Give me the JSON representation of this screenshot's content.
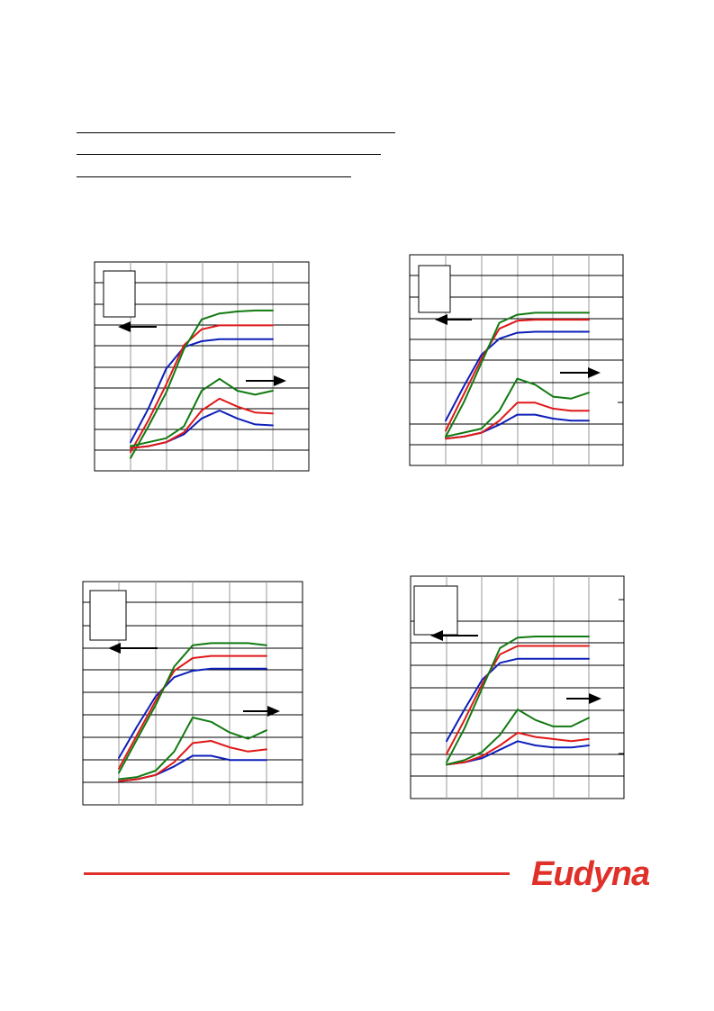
{
  "brand": {
    "logo_text": "Eudyna",
    "color": "#e0302a"
  },
  "colors": {
    "blue": "#0d1fb8",
    "red": "#e01818",
    "green": "#127a12",
    "grid": "#000000"
  },
  "chart_data": [
    {
      "type": "line",
      "xlim": [
        -2,
        4
      ],
      "ylim": [
        0,
        100
      ],
      "grid": true,
      "arrows": [
        {
          "direction": "left"
        },
        {
          "direction": "right"
        }
      ],
      "series": [
        {
          "color": "#0d1fb8",
          "values": [
            [
              -1,
              9
            ],
            [
              -0.5,
              26
            ],
            [
              0,
              46
            ],
            [
              0.5,
              57
            ],
            [
              1,
              60
            ],
            [
              1.5,
              61
            ],
            [
              2,
              61
            ],
            [
              2.5,
              61
            ],
            [
              3,
              61
            ]
          ]
        },
        {
          "color": "#e01818",
          "values": [
            [
              -1,
              4
            ],
            [
              -0.5,
              20
            ],
            [
              0,
              38
            ],
            [
              0.5,
              58
            ],
            [
              1,
              66
            ],
            [
              1.5,
              68
            ],
            [
              2,
              68
            ],
            [
              2.5,
              68
            ],
            [
              3,
              68
            ]
          ]
        },
        {
          "color": "#127a12",
          "values": [
            [
              -1,
              1
            ],
            [
              -0.5,
              17
            ],
            [
              0,
              34
            ],
            [
              0.5,
              56
            ],
            [
              1,
              71
            ],
            [
              1.5,
              74
            ],
            [
              2,
              75
            ],
            [
              2.5,
              75.5
            ],
            [
              3,
              75.5
            ]
          ]
        },
        {
          "color": "#0d1fb8",
          "values": [
            [
              -1,
              6
            ],
            [
              -0.5,
              7
            ],
            [
              0,
              9
            ],
            [
              0.5,
              13
            ],
            [
              1,
              21
            ],
            [
              1.5,
              25
            ],
            [
              2,
              21
            ],
            [
              2.5,
              18
            ],
            [
              3,
              17.5
            ]
          ]
        },
        {
          "color": "#e01818",
          "values": [
            [
              -1,
              6
            ],
            [
              -0.5,
              7
            ],
            [
              0,
              9
            ],
            [
              0.5,
              14
            ],
            [
              1,
              25
            ],
            [
              1.5,
              31
            ],
            [
              2,
              27
            ],
            [
              2.5,
              24
            ],
            [
              3,
              23.5
            ]
          ]
        },
        {
          "color": "#127a12",
          "values": [
            [
              -1,
              7
            ],
            [
              -0.5,
              9
            ],
            [
              0,
              11
            ],
            [
              0.5,
              17
            ],
            [
              1,
              35
            ],
            [
              1.5,
              41
            ],
            [
              2,
              35
            ],
            [
              2.5,
              33
            ],
            [
              3,
              35
            ]
          ]
        }
      ]
    },
    {
      "type": "line",
      "xlim": [
        -2,
        4
      ],
      "ylim": [
        0,
        100
      ],
      "grid": true,
      "arrows": [
        {
          "direction": "left"
        },
        {
          "direction": "right"
        }
      ],
      "series": [
        {
          "color": "#0d1fb8",
          "values": [
            [
              -1,
              17
            ],
            [
              -0.5,
              34
            ],
            [
              0,
              50
            ],
            [
              0.5,
              58
            ],
            [
              1,
              61
            ],
            [
              1.5,
              61.5
            ],
            [
              2,
              61.5
            ],
            [
              2.5,
              61.5
            ],
            [
              3,
              61.5
            ]
          ]
        },
        {
          "color": "#e01818",
          "values": [
            [
              -1,
              12
            ],
            [
              -0.5,
              30
            ],
            [
              0,
              48
            ],
            [
              0.5,
              63
            ],
            [
              1,
              67
            ],
            [
              1.5,
              67.5
            ],
            [
              2,
              67.5
            ],
            [
              2.5,
              67.5
            ],
            [
              3,
              67.5
            ]
          ]
        },
        {
          "color": "#127a12",
          "values": [
            [
              -1,
              9
            ],
            [
              -0.5,
              26
            ],
            [
              0,
              46
            ],
            [
              0.5,
              66
            ],
            [
              1,
              70
            ],
            [
              1.5,
              71
            ],
            [
              2,
              71
            ],
            [
              2.5,
              71
            ],
            [
              3,
              71
            ]
          ]
        },
        {
          "color": "#0d1fb8",
          "values": [
            [
              -1,
              8
            ],
            [
              -0.5,
              9
            ],
            [
              0,
              11
            ],
            [
              0.5,
              15
            ],
            [
              1,
              20
            ],
            [
              1.5,
              20
            ],
            [
              2,
              18
            ],
            [
              2.5,
              17
            ],
            [
              3,
              17
            ]
          ]
        },
        {
          "color": "#e01818",
          "values": [
            [
              -1,
              8
            ],
            [
              -0.5,
              9
            ],
            [
              0,
              11
            ],
            [
              0.5,
              17
            ],
            [
              1,
              26
            ],
            [
              1.5,
              26
            ],
            [
              2,
              23
            ],
            [
              2.5,
              22
            ],
            [
              3,
              22
            ]
          ]
        },
        {
          "color": "#127a12",
          "values": [
            [
              -1,
              9
            ],
            [
              -0.5,
              11
            ],
            [
              0,
              13
            ],
            [
              0.5,
              22
            ],
            [
              1,
              38
            ],
            [
              1.5,
              35
            ],
            [
              2,
              29
            ],
            [
              2.5,
              28
            ],
            [
              3,
              31
            ]
          ]
        }
      ]
    },
    {
      "type": "line",
      "xlim": [
        -2,
        4
      ],
      "ylim": [
        0,
        100
      ],
      "grid": true,
      "arrows": [
        {
          "direction": "left"
        },
        {
          "direction": "right"
        }
      ],
      "series": [
        {
          "color": "#0d1fb8",
          "values": [
            [
              -1,
              17
            ],
            [
              -0.5,
              32
            ],
            [
              0,
              46
            ],
            [
              0.5,
              55
            ],
            [
              1,
              58
            ],
            [
              1.5,
              59
            ],
            [
              2,
              59
            ],
            [
              2.5,
              59
            ],
            [
              3,
              59
            ]
          ]
        },
        {
          "color": "#e01818",
          "values": [
            [
              -1,
              12
            ],
            [
              -0.5,
              28
            ],
            [
              0,
              44
            ],
            [
              0.5,
              58
            ],
            [
              1,
              64
            ],
            [
              1.5,
              65
            ],
            [
              2,
              65
            ],
            [
              2.5,
              65
            ],
            [
              3,
              65
            ]
          ]
        },
        {
          "color": "#127a12",
          "values": [
            [
              -1,
              10
            ],
            [
              -0.5,
              26
            ],
            [
              0,
              42
            ],
            [
              0.5,
              60
            ],
            [
              1,
              70
            ],
            [
              1.5,
              71
            ],
            [
              2,
              71
            ],
            [
              2.5,
              71
            ],
            [
              3,
              70
            ]
          ]
        },
        {
          "color": "#0d1fb8",
          "values": [
            [
              -1,
              6
            ],
            [
              -0.5,
              7
            ],
            [
              0,
              9
            ],
            [
              0.5,
              13
            ],
            [
              1,
              18
            ],
            [
              1.5,
              18
            ],
            [
              2,
              16
            ],
            [
              2.5,
              16
            ],
            [
              3,
              16
            ]
          ]
        },
        {
          "color": "#e01818",
          "values": [
            [
              -1,
              6
            ],
            [
              -0.5,
              7
            ],
            [
              0,
              9
            ],
            [
              0.5,
              15
            ],
            [
              1,
              24
            ],
            [
              1.5,
              25
            ],
            [
              2,
              22
            ],
            [
              2.5,
              20
            ],
            [
              3,
              21
            ]
          ]
        },
        {
          "color": "#127a12",
          "values": [
            [
              -1,
              7
            ],
            [
              -0.5,
              8
            ],
            [
              0,
              11
            ],
            [
              0.5,
              20
            ],
            [
              1,
              36
            ],
            [
              1.5,
              34
            ],
            [
              2,
              29
            ],
            [
              2.5,
              26
            ],
            [
              3,
              30
            ]
          ]
        }
      ]
    },
    {
      "type": "line",
      "xlim": [
        -2,
        4
      ],
      "ylim": [
        0,
        100
      ],
      "grid": true,
      "arrows": [
        {
          "direction": "left"
        },
        {
          "direction": "right"
        }
      ],
      "series": [
        {
          "color": "#0d1fb8",
          "values": [
            [
              -1,
              22
            ],
            [
              -0.5,
              37
            ],
            [
              0,
              51
            ],
            [
              0.5,
              59
            ],
            [
              1,
              61
            ],
            [
              1.5,
              61
            ],
            [
              2,
              61
            ],
            [
              2.5,
              61
            ],
            [
              3,
              61
            ]
          ]
        },
        {
          "color": "#e01818",
          "values": [
            [
              -1,
              16
            ],
            [
              -0.5,
              32
            ],
            [
              0,
              49
            ],
            [
              0.5,
              63
            ],
            [
              1,
              67
            ],
            [
              1.5,
              67
            ],
            [
              2,
              67
            ],
            [
              2.5,
              67
            ],
            [
              3,
              67
            ]
          ]
        },
        {
          "color": "#127a12",
          "values": [
            [
              -1,
              12
            ],
            [
              -0.5,
              28
            ],
            [
              0,
              47
            ],
            [
              0.5,
              66
            ],
            [
              1,
              71
            ],
            [
              1.5,
              71.5
            ],
            [
              2,
              71.5
            ],
            [
              2.5,
              71.5
            ],
            [
              3,
              71.5
            ]
          ]
        },
        {
          "color": "#0d1fb8",
          "values": [
            [
              -1,
              11
            ],
            [
              -0.5,
              12
            ],
            [
              0,
              14
            ],
            [
              0.5,
              18
            ],
            [
              1,
              22
            ],
            [
              1.5,
              20
            ],
            [
              2,
              19
            ],
            [
              2.5,
              19
            ],
            [
              3,
              20
            ]
          ]
        },
        {
          "color": "#e01818",
          "values": [
            [
              -1,
              11
            ],
            [
              -0.5,
              12
            ],
            [
              0,
              15
            ],
            [
              0.5,
              20
            ],
            [
              1,
              26
            ],
            [
              1.5,
              24
            ],
            [
              2,
              23
            ],
            [
              2.5,
              22
            ],
            [
              3,
              23
            ]
          ]
        },
        {
          "color": "#127a12",
          "values": [
            [
              -1,
              11
            ],
            [
              -0.5,
              13
            ],
            [
              0,
              17
            ],
            [
              0.5,
              25
            ],
            [
              1,
              37
            ],
            [
              1.5,
              32
            ],
            [
              2,
              29
            ],
            [
              2.5,
              29
            ],
            [
              3,
              33
            ]
          ]
        }
      ]
    }
  ]
}
